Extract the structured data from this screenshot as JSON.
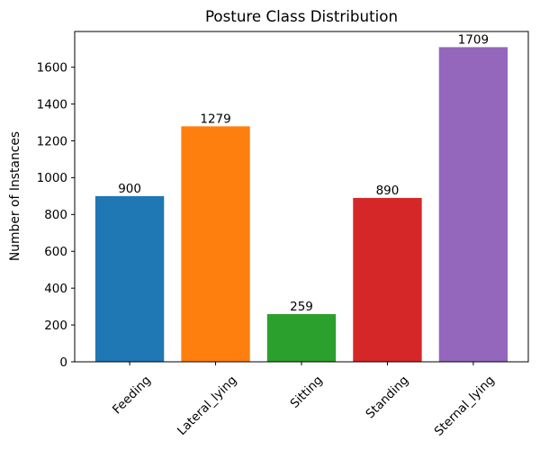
{
  "figure": {
    "background": "#ffffff"
  },
  "chart_data": {
    "type": "bar",
    "title": "Posture Class Distribution",
    "xlabel": "",
    "ylabel": "Number of Instances",
    "categories": [
      "Feeding",
      "Lateral_lying",
      "Sitting",
      "Standing",
      "Sternal_lying"
    ],
    "values": [
      900,
      1279,
      259,
      890,
      1709
    ],
    "value_labels": [
      "900",
      "1279",
      "259",
      "890",
      "1709"
    ],
    "bar_colors": [
      "#1f77b4",
      "#ff7f0e",
      "#2ca02c",
      "#d62728",
      "#9467bd"
    ],
    "yticks": [
      0,
      200,
      400,
      600,
      800,
      1000,
      1200,
      1400,
      1600
    ],
    "ylim": [
      0,
      1794
    ],
    "bar_width_fraction": 0.8,
    "xtick_rotation": 45,
    "grid": false,
    "legend_position": "none",
    "axis_color": "#000000",
    "tick_font_size": 13.5,
    "value_label_font_size": 13.5
  }
}
